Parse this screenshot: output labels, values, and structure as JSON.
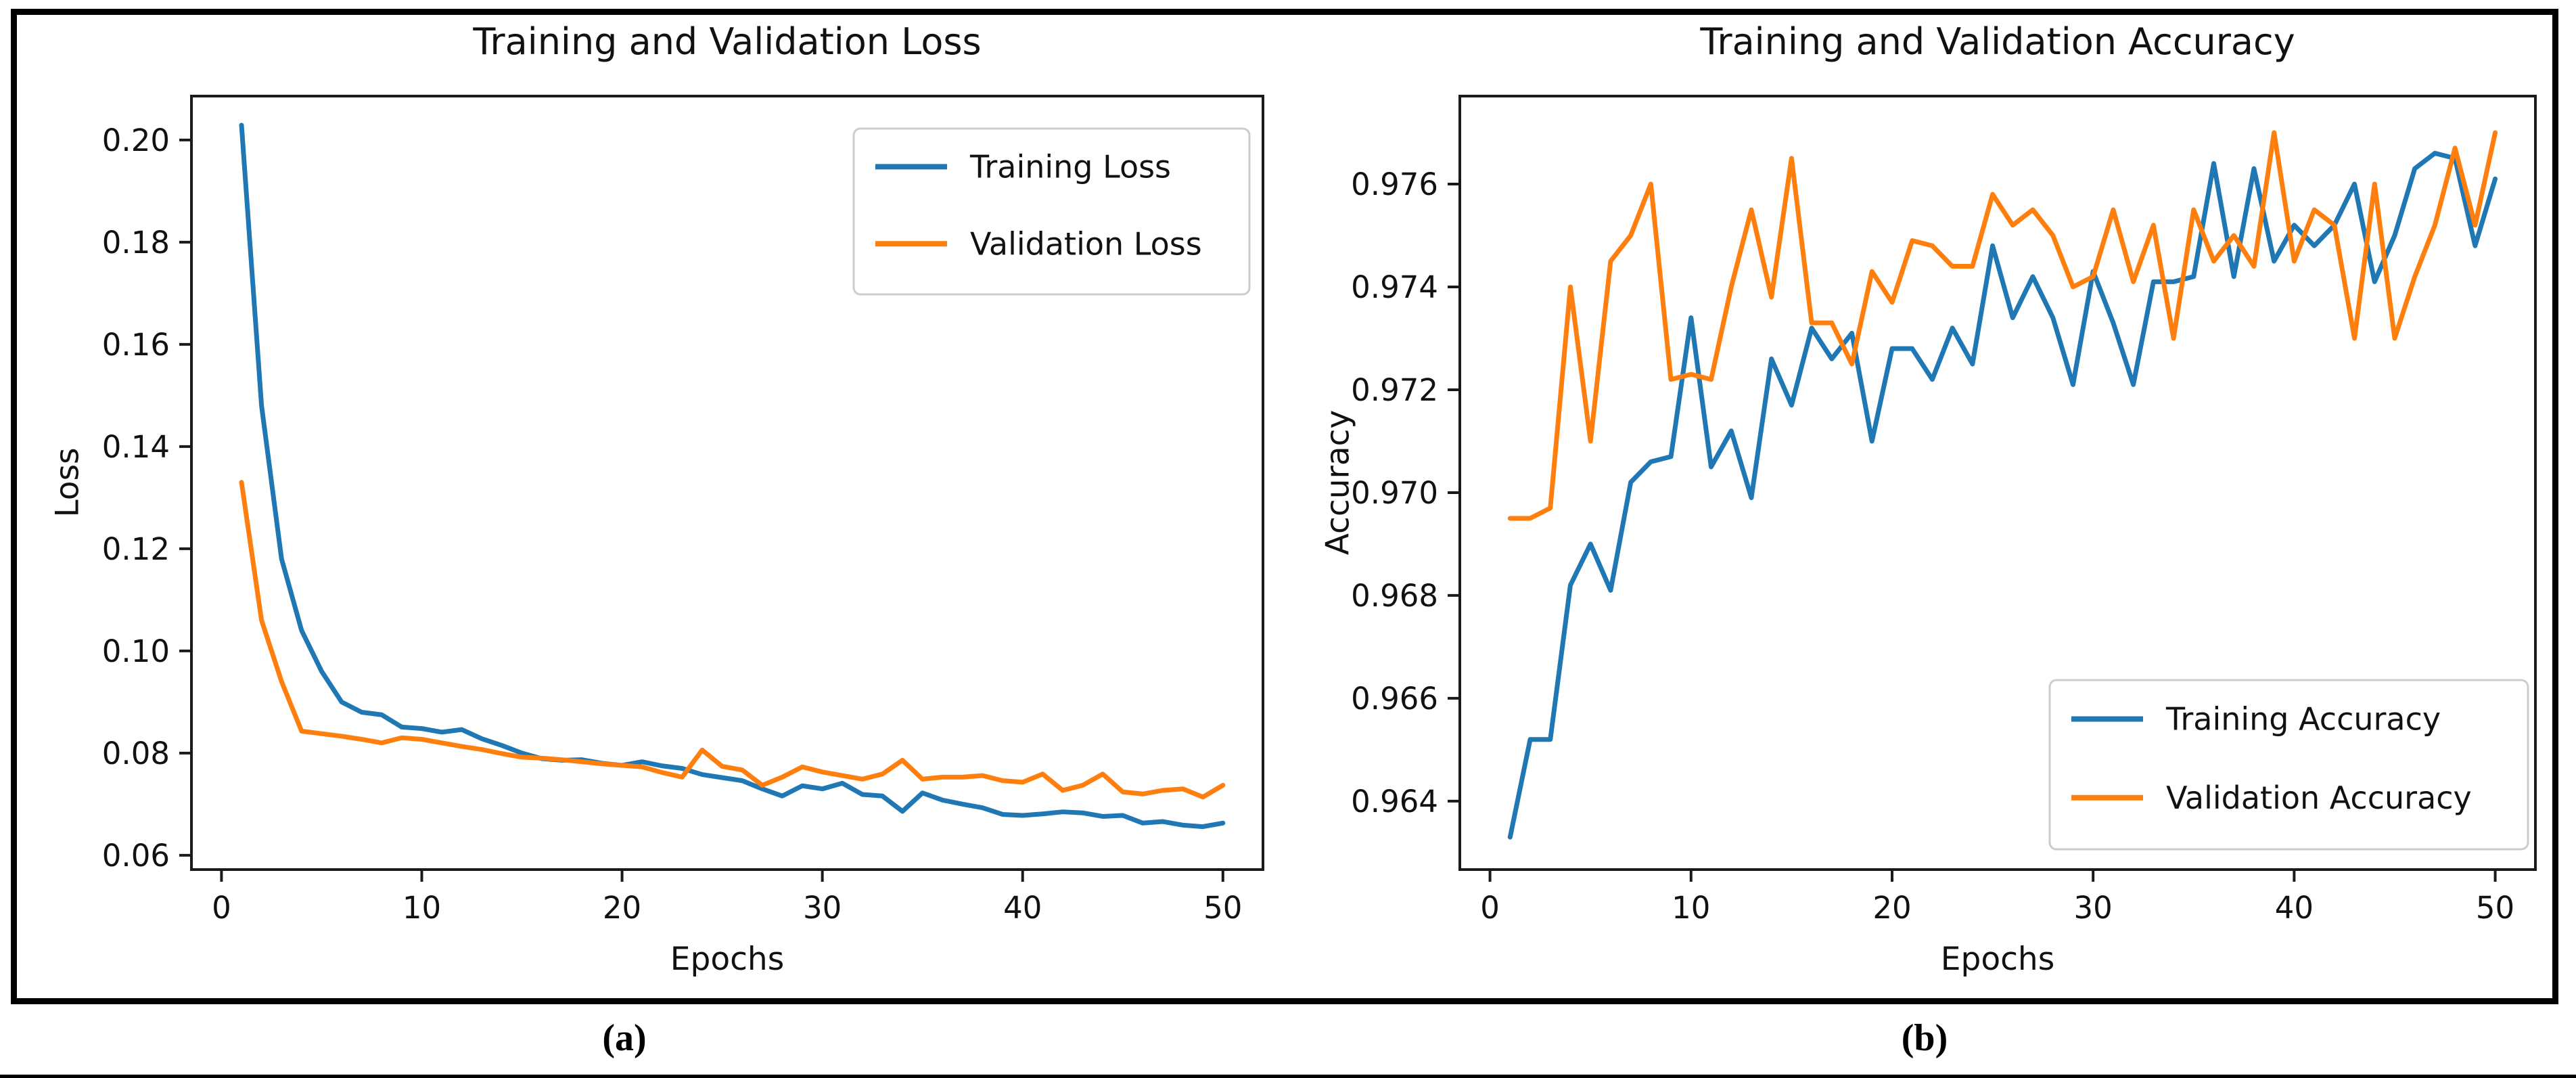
{
  "figure": {
    "caption_a": "(a)",
    "caption_b": "(b)"
  },
  "colors": {
    "training_line": "#1f77b4",
    "validation_line": "#ff7f0e",
    "text": "#111111",
    "frame": "#000000",
    "spine": "#1a1a1a",
    "legend_border": "#cccccc",
    "legend_background": "#ffffff"
  },
  "chart_data": [
    {
      "type": "line",
      "title": "Training and Validation Loss",
      "xlabel": "Epochs",
      "ylabel": "Loss",
      "xlim": [
        -1.5,
        52.0
      ],
      "ylim": [
        0.0572,
        0.2086
      ],
      "xticks": [
        0,
        10,
        20,
        30,
        40,
        50
      ],
      "yticks": [
        0.06,
        0.08,
        0.1,
        0.12,
        0.14,
        0.16,
        0.18,
        0.2
      ],
      "ytick_decimals": 2,
      "grid": false,
      "legend_position": "upper right",
      "x": [
        1,
        2,
        3,
        4,
        5,
        6,
        7,
        8,
        9,
        10,
        11,
        12,
        13,
        14,
        15,
        16,
        17,
        18,
        19,
        20,
        21,
        22,
        23,
        24,
        25,
        26,
        27,
        28,
        29,
        30,
        31,
        32,
        33,
        34,
        35,
        36,
        37,
        38,
        39,
        40,
        41,
        42,
        43,
        44,
        45,
        46,
        47,
        48,
        49,
        50
      ],
      "series": [
        {
          "name": "Training Loss",
          "color": "#1f77b4",
          "values": [
            0.2029,
            0.148,
            0.118,
            0.104,
            0.096,
            0.09,
            0.088,
            0.0875,
            0.0851,
            0.0848,
            0.0841,
            0.0846,
            0.0828,
            0.0815,
            0.08,
            0.0789,
            0.0786,
            0.0787,
            0.078,
            0.0776,
            0.0783,
            0.0775,
            0.077,
            0.0758,
            0.0752,
            0.0746,
            0.073,
            0.0716,
            0.0736,
            0.073,
            0.0741,
            0.0719,
            0.0716,
            0.0686,
            0.0722,
            0.0708,
            0.07,
            0.0693,
            0.068,
            0.0678,
            0.0681,
            0.0685,
            0.0683,
            0.0676,
            0.0678,
            0.0663,
            0.0666,
            0.0659,
            0.0656,
            0.0663
          ]
        },
        {
          "name": "Validation Loss",
          "color": "#ff7f0e",
          "values": [
            0.133,
            0.106,
            0.094,
            0.0843,
            0.0838,
            0.0833,
            0.0827,
            0.082,
            0.083,
            0.0827,
            0.082,
            0.0813,
            0.0807,
            0.0799,
            0.0792,
            0.079,
            0.0787,
            0.0783,
            0.0779,
            0.0776,
            0.0773,
            0.0762,
            0.0753,
            0.0806,
            0.0774,
            0.0767,
            0.0737,
            0.0753,
            0.0773,
            0.0763,
            0.0756,
            0.0749,
            0.0759,
            0.0786,
            0.0749,
            0.0753,
            0.0753,
            0.0756,
            0.0746,
            0.0743,
            0.0759,
            0.0727,
            0.0737,
            0.0759,
            0.0724,
            0.072,
            0.0727,
            0.073,
            0.0714,
            0.0737
          ]
        }
      ]
    },
    {
      "type": "line",
      "title": "Training and Validation Accuracy",
      "xlabel": "Epochs",
      "ylabel": "Accuracy",
      "xlim": [
        -1.5,
        52.0
      ],
      "ylim": [
        0.96267,
        0.97771
      ],
      "xticks": [
        0,
        10,
        20,
        30,
        40,
        50
      ],
      "yticks": [
        0.964,
        0.966,
        0.968,
        0.97,
        0.972,
        0.974,
        0.976
      ],
      "ytick_decimals": 3,
      "grid": false,
      "legend_position": "lower right",
      "x": [
        1,
        2,
        3,
        4,
        5,
        6,
        7,
        8,
        9,
        10,
        11,
        12,
        13,
        14,
        15,
        16,
        17,
        18,
        19,
        20,
        21,
        22,
        23,
        24,
        25,
        26,
        27,
        28,
        29,
        30,
        31,
        32,
        33,
        34,
        35,
        36,
        37,
        38,
        39,
        40,
        41,
        42,
        43,
        44,
        45,
        46,
        47,
        48,
        49,
        50
      ],
      "series": [
        {
          "name": "Training Accuracy",
          "color": "#1f77b4",
          "values": [
            0.9633,
            0.9652,
            0.9652,
            0.9682,
            0.969,
            0.9681,
            0.9702,
            0.9706,
            0.9707,
            0.9734,
            0.9705,
            0.9712,
            0.9699,
            0.9726,
            0.9717,
            0.9732,
            0.9726,
            0.9731,
            0.971,
            0.9728,
            0.9728,
            0.9722,
            0.9732,
            0.9725,
            0.9748,
            0.9734,
            0.9742,
            0.9734,
            0.9721,
            0.9743,
            0.9733,
            0.9721,
            0.9741,
            0.9741,
            0.9742,
            0.9764,
            0.9742,
            0.9763,
            0.9745,
            0.9752,
            0.9748,
            0.9752,
            0.976,
            0.9741,
            0.975,
            0.9763,
            0.9766,
            0.9765,
            0.9748,
            0.9761
          ]
        },
        {
          "name": "Validation Accuracy",
          "color": "#ff7f0e",
          "values": [
            0.9695,
            0.9695,
            0.9697,
            0.974,
            0.971,
            0.9745,
            0.975,
            0.976,
            0.9722,
            0.9723,
            0.9722,
            0.974,
            0.9755,
            0.9738,
            0.9765,
            0.9733,
            0.9733,
            0.9725,
            0.9743,
            0.9737,
            0.9749,
            0.9748,
            0.9744,
            0.9744,
            0.9758,
            0.9752,
            0.9755,
            0.975,
            0.974,
            0.9742,
            0.9755,
            0.9741,
            0.9752,
            0.973,
            0.9755,
            0.9745,
            0.975,
            0.9744,
            0.977,
            0.9745,
            0.9755,
            0.9752,
            0.973,
            0.976,
            0.973,
            0.9742,
            0.9752,
            0.9767,
            0.9752,
            0.977
          ]
        }
      ]
    }
  ]
}
